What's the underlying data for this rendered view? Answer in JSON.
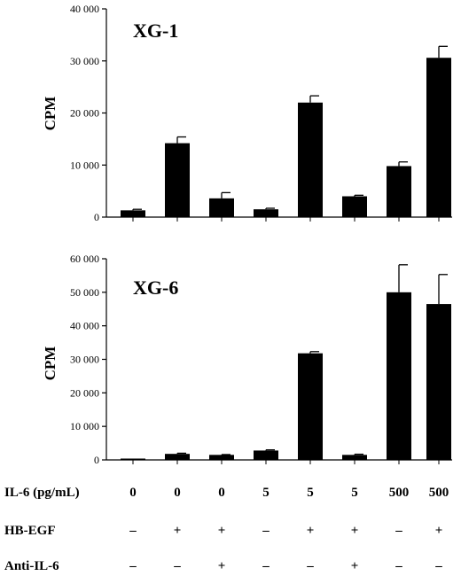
{
  "chart_data": [
    {
      "type": "bar",
      "title": "XG-1",
      "ylabel": "CPM",
      "ylim": [
        0,
        40000
      ],
      "yticks": [
        "0",
        "10 000",
        "20 000",
        "30 000",
        "40 000"
      ],
      "ytick_values": [
        0,
        10000,
        20000,
        30000,
        40000
      ],
      "values": [
        1300,
        14200,
        3600,
        1500,
        22000,
        4000,
        9800,
        30600
      ],
      "errors": [
        200,
        1200,
        1100,
        200,
        1300,
        200,
        800,
        2200
      ],
      "bar_color": "#000000"
    },
    {
      "type": "bar",
      "title": "XG-6",
      "ylabel": "CPM",
      "ylim": [
        0,
        60000
      ],
      "yticks": [
        "0",
        "10 000",
        "20 000",
        "30 000",
        "40 000",
        "50 000",
        "60 000"
      ],
      "ytick_values": [
        0,
        10000,
        20000,
        30000,
        40000,
        50000,
        60000
      ],
      "values": [
        400,
        1800,
        1500,
        2800,
        31800,
        1500,
        50000,
        46500
      ],
      "errors": [
        0,
        200,
        100,
        200,
        500,
        200,
        8200,
        8800
      ],
      "bar_color": "#000000"
    }
  ],
  "conditions": [
    {
      "label": "IL-6 (pg/mL)",
      "values": [
        "0",
        "0",
        "0",
        "5",
        "5",
        "5",
        "500",
        "500"
      ]
    },
    {
      "label": "HB-EGF",
      "values": [
        "–",
        "+",
        "+",
        "–",
        "+",
        "+",
        "–",
        "+"
      ]
    },
    {
      "label": "Anti-IL-6",
      "values": [
        "–",
        "–",
        "+",
        "–",
        "–",
        "+",
        "–",
        "–"
      ]
    }
  ]
}
